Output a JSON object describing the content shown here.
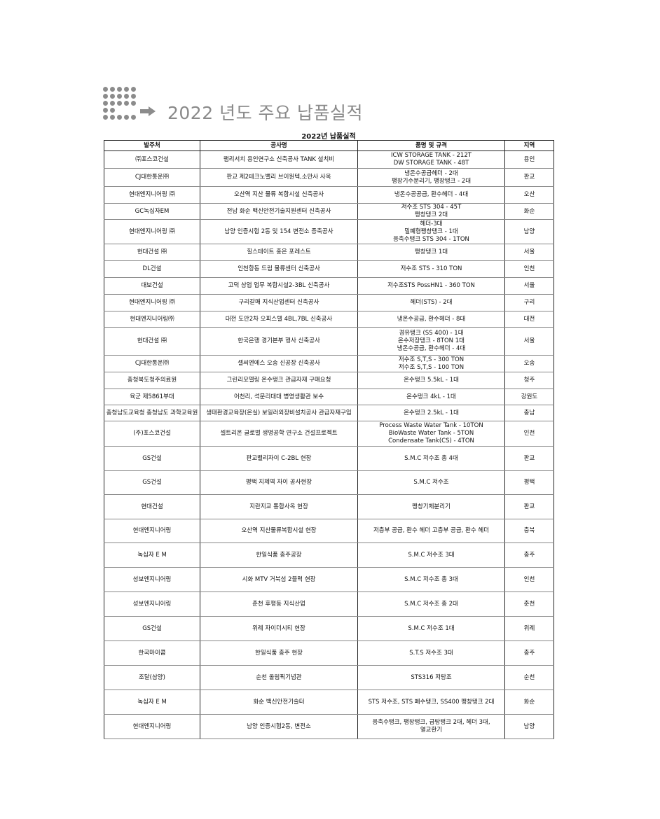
{
  "header": {
    "title": "2022 년도 주요 납품실적",
    "logo_icon": "dot-grid-logo",
    "arrow_icon": "right-arrow-icon",
    "title_color": "#8a8a8a"
  },
  "table": {
    "caption": "2022년  납품실적",
    "columns": [
      "발주처",
      "공사명",
      "품명 및 규격",
      "지역"
    ],
    "rows": [
      {
        "client": "㈜포스코건설",
        "project": "램리서치 용인연구소 신축공사 TANK 설치비",
        "items": [
          "ICW STORAGE TANK - 212T",
          "DW STORAGE TANK - 48T"
        ],
        "region": "용인"
      },
      {
        "client": "CJ대한통운㈜",
        "project": "판교 제2테크노밸리 브이원텍,소만사 사옥",
        "items": [
          "냉온수공급헤더 - 2대",
          "팽창기수분리기, 팽창탱크 - 2대"
        ],
        "region": "판교"
      },
      {
        "client": "현대엔지니어링 ㈜",
        "project": "오산역 지산 물류 복합시설 신축공사",
        "items": [
          "냉온수공공급, 환수헤더 - 4대"
        ],
        "region": "오산"
      },
      {
        "client": "GC녹십자EM",
        "project": "전남 화순 백신안전기술지원센터 신축공사",
        "items": [
          "저수조 STS 304 - 45T",
          "팽창탱크 2대"
        ],
        "region": "화순"
      },
      {
        "client": "현대엔지니어링 ㈜",
        "project": "남양 인증시험 2동 및 154 변전소 증축공사",
        "items": [
          "헤더-3대",
          "밀폐형팽창탱크 - 1대",
          "응축수탱크 STS 304 - 1TON"
        ],
        "region": "남양"
      },
      {
        "client": "현대건설 ㈜",
        "project": "힐스테이트 홍은 포레스트",
        "items": [
          "팽창탱크 1대"
        ],
        "region": "서울"
      },
      {
        "client": "DL건설",
        "project": "인천항동 드림 물류센터 신축공사",
        "items": [
          "저수조 STS - 310 TON"
        ],
        "region": "인천"
      },
      {
        "client": "대보건설",
        "project": "고덕 상업 업무 복합시설2-3BL 신축공사",
        "items": [
          "저수조STS PossHN1 - 360 TON"
        ],
        "region": "서울"
      },
      {
        "client": "현대엔지니어링 ㈜",
        "project": "구리갈매 지식산업센터 신축공사",
        "items": [
          "헤더(STS) - 2대"
        ],
        "region": "구리"
      },
      {
        "client": "현대엔지니어링㈜",
        "project": "대전 도안2차 오피스텔 4BL,7BL 신축공사",
        "items": [
          "냉온수공급, 환수헤더 - 8대"
        ],
        "region": "대전"
      },
      {
        "client": "현대건설 ㈜",
        "project": "한국은행 경기본부 행사 신축공사",
        "items": [
          "경유탱크 (SS 400) - 1대",
          "온수저장탱크 - 8TON 1대",
          "냉온수공급, 환수헤더 - 4대"
        ],
        "region": "서울"
      },
      {
        "client": "CJ대한통운㈜",
        "project": "셀씨엔에스 오송  신공장 신축공사",
        "items": [
          "저수조 S,T,S - 300 TON",
          "저수조 S,T,S - 100 TON"
        ],
        "region": "오송"
      },
      {
        "client": "충청북도청주의료원",
        "project": "그린리모델링 온수탱크 관급자재 구매요청",
        "items": [
          "온수탱크 5.5kL - 1대"
        ],
        "region": "청주"
      },
      {
        "client": "육군 제5861부대",
        "project": "어천리, 석문리대대 병영생활관 보수",
        "items": [
          "온수탱크 4kL - 1대"
        ],
        "region": "강원도"
      },
      {
        "client": "충청남도교육청 충청남도 과학교육원",
        "project": "생태환경교육장(온실) 보일러외장비설치공사 관급자재구입",
        "items": [
          "온수탱크 2.5kL - 1대"
        ],
        "region": "충남"
      },
      {
        "client": "(주)포스코건설",
        "project": "셀트리온 글로벌 생명공학 연구소 건설프로젝트",
        "items": [
          "Process Waste Water Tank - 10TON",
          "BioWaste Water Tank - 5TON",
          "Condensate Tank(CS) - 4TON"
        ],
        "region": "인천"
      },
      {
        "client": "GS건설",
        "project": "판교밸리자이 C-2BL 현장",
        "items": [
          "S.M.C 저수조 총 4대"
        ],
        "region": "판교"
      },
      {
        "client": "GS건설",
        "project": "평택 지제역 자이 공사현장",
        "items": [
          "S.M.C 저수조"
        ],
        "region": "평택"
      },
      {
        "client": "현대건설",
        "project": "지란지교 통합사옥 현장",
        "items": [
          "팽창기체분리기"
        ],
        "region": "판교"
      },
      {
        "client": "현대엔지니어링",
        "project": "오산역 지산물류복합시설 현장",
        "items": [
          "저층부 공급, 환수 헤더 고층부 공급, 환수 헤더"
        ],
        "region": "충북"
      },
      {
        "client": "녹십자 E M",
        "project": "한일식품 충주공장",
        "items": [
          "S.M.C 저수조 3대"
        ],
        "region": "충주"
      },
      {
        "client": "성보엔지니어링",
        "project": "시화 MTV 거북섬 2블럭 현장",
        "items": [
          "S.M.C 저수조 총 3대"
        ],
        "region": "인천"
      },
      {
        "client": "성보엔지니어링",
        "project": "춘천 후평동 지식산업",
        "items": [
          "S.M.C 저수조 총 2대"
        ],
        "region": "춘천"
      },
      {
        "client": "GS건설",
        "project": "위례 자이더시티 현장",
        "items": [
          "S.M.C 저수조 1대"
        ],
        "region": "위례"
      },
      {
        "client": "한국마이콤",
        "project": "한일식품 충주 현장",
        "items": [
          "S.T.S 저수조 3대"
        ],
        "region": "충주"
      },
      {
        "client": "조달(삼양)",
        "project": "순천 올림픽기념관",
        "items": [
          "STS316 저탕조"
        ],
        "region": "순천"
      },
      {
        "client": "녹십자 E M",
        "project": "화순 백신안전기술터",
        "items": [
          "STS 저수조, STS 폐수탱크, SS400 팽창탱크 2대"
        ],
        "region": "화순"
      },
      {
        "client": "현대엔지니어링",
        "project": "남양 인증시험2동, 변전소",
        "items": [
          "응축수탱크, 팽창탱크, 급탕탱크 2대, 헤더 3대,",
          "열교환기"
        ],
        "region": "남양"
      }
    ]
  }
}
